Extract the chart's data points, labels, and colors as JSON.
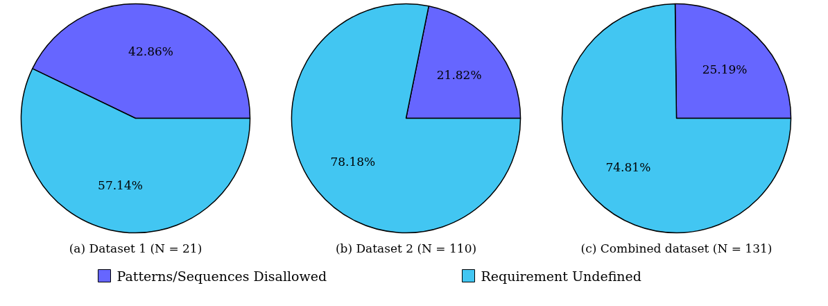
{
  "chart_data": [
    {
      "type": "pie",
      "xlabel": "(a) Dataset 1 (N = 21)",
      "categories": [
        "Patterns/Sequences Disallowed",
        "Requirement Undefined"
      ],
      "values": [
        42.86,
        57.14
      ],
      "value_labels": [
        "42.86%",
        "57.14%"
      ],
      "colors": [
        "#6666ff",
        "#42c6f2"
      ],
      "legend": "bottom"
    },
    {
      "type": "pie",
      "xlabel": "(b) Dataset 2 (N = 110)",
      "categories": [
        null,
        null
      ],
      "values": [
        21.82,
        78.18
      ],
      "value_labels": [
        "21.82%",
        "78.18%"
      ],
      "colors": [
        "#6666ff",
        "#42c6f2"
      ]
    },
    {
      "type": "pie",
      "xlabel": "(c) Combined dataset (N = 131)",
      "categories": [
        null,
        null
      ],
      "values": [
        25.19,
        74.81
      ],
      "value_labels": [
        "25.19%",
        "74.81%"
      ],
      "colors": [
        "#6666ff",
        "#42c6f2"
      ]
    }
  ]
}
